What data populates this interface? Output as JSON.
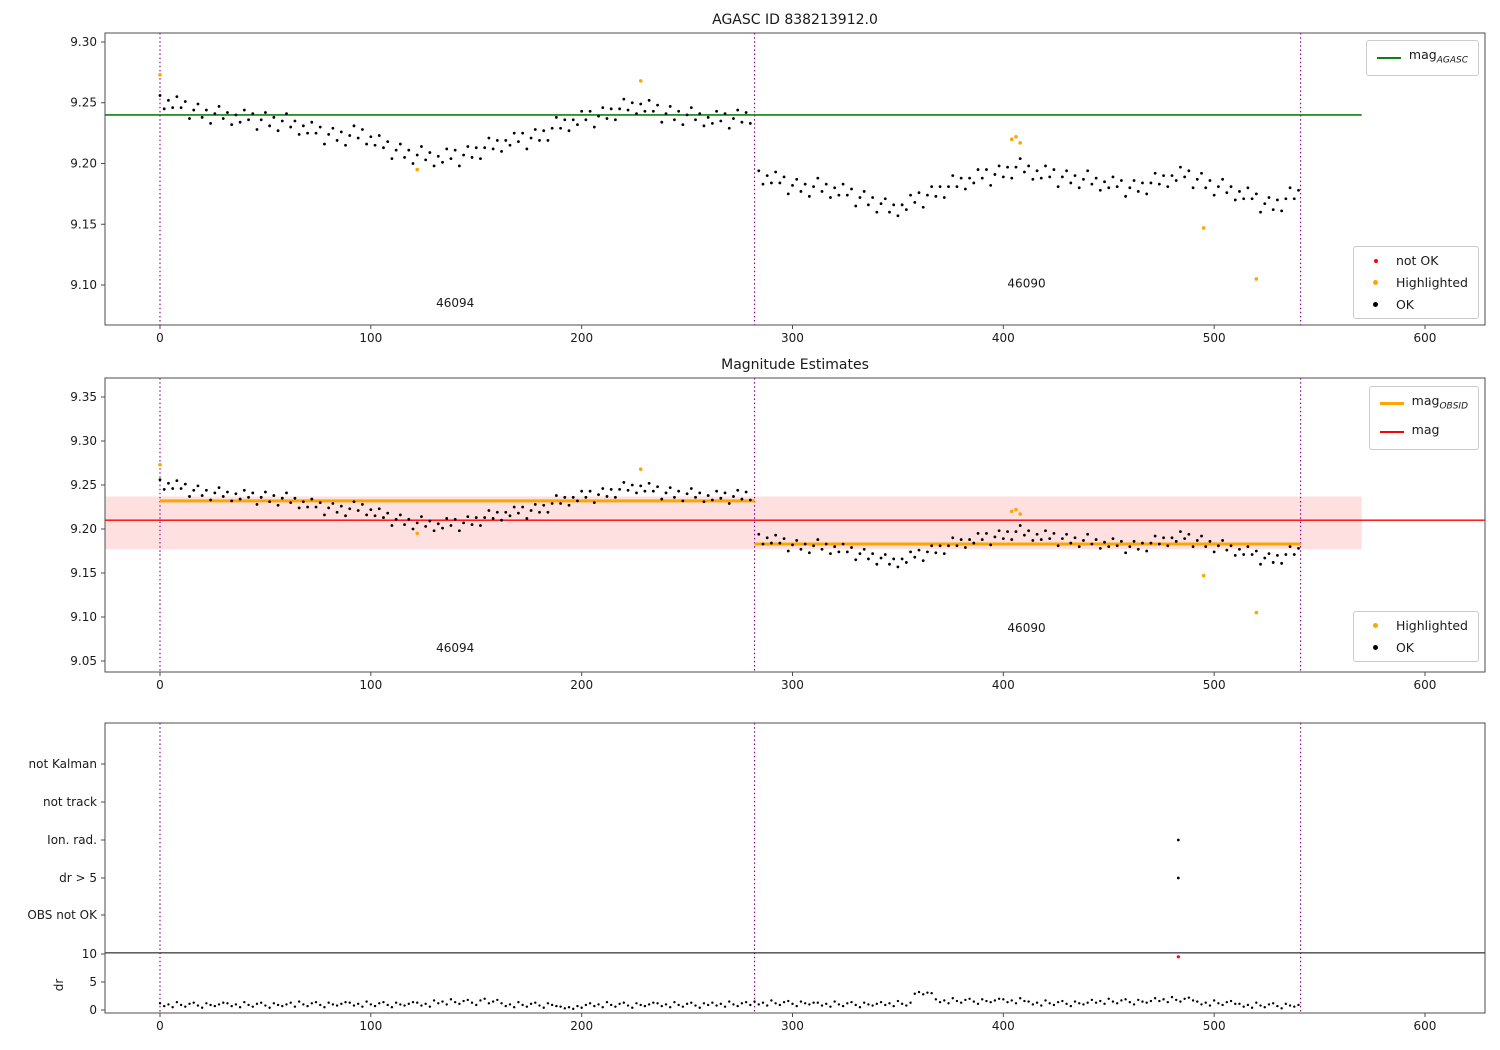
{
  "colors": {
    "ok": "#000000",
    "highlighted": "#ffa500",
    "not_ok": "#ff0000",
    "mag_agasc_line": "#0e8010",
    "mag_obsid_line": "#ffa500",
    "mag_line": "#ff0000",
    "mag_band": "rgba(255,0,0,0.12)",
    "obsid_boundary": "#800080",
    "threshold_line": "#000000"
  },
  "chart_data": {
    "type": "scatter",
    "xticks": [
      0,
      100,
      200,
      300,
      400,
      500,
      600
    ],
    "obsid_boundaries": [
      0,
      282,
      541
    ],
    "charts": [
      {
        "title": "AGASC ID 838213912.0",
        "yticks": [
          9.3,
          9.25,
          9.2,
          9.15,
          9.1
        ],
        "ylim": [
          9.067,
          9.307
        ],
        "xlim": [
          -26,
          629
        ],
        "ref_line": {
          "value": 9.24,
          "x_span": [
            -26,
            570
          ]
        },
        "legend_line": {
          "label_main": "mag",
          "label_sub": "AGASC"
        },
        "legend_points": [
          {
            "label": "not OK"
          },
          {
            "label": "Highlighted"
          },
          {
            "label": "OK"
          }
        ],
        "obsid_labels": [
          {
            "text": "46094",
            "x": 140,
            "y": 9.082
          },
          {
            "text": "46090",
            "x": 411,
            "y": 9.098
          }
        ]
      },
      {
        "title": "Magnitude Estimates",
        "yticks": [
          9.35,
          9.3,
          9.25,
          9.2,
          9.15,
          9.1,
          9.05
        ],
        "ylim": [
          9.037,
          9.372
        ],
        "xlim": [
          -26,
          629
        ],
        "mag_line": {
          "value": 9.21,
          "band": [
            9.177,
            9.237
          ],
          "band_x_span": [
            -26,
            570
          ]
        },
        "obsid_mag_lines": [
          {
            "x_span": [
              0,
              282
            ],
            "value": 9.232
          },
          {
            "x_span": [
              282,
              541
            ],
            "value": 9.183
          }
        ],
        "legend_lines": [
          {
            "label_main": "mag",
            "label_sub": "OBSID"
          },
          {
            "label_main": "mag",
            "label_sub": ""
          }
        ],
        "legend_points": [
          {
            "label": "Highlighted"
          },
          {
            "label": "OK"
          }
        ],
        "obsid_labels": [
          {
            "text": "46094",
            "x": 140,
            "y": 9.06
          },
          {
            "text": "46090",
            "x": 411,
            "y": 9.083
          }
        ]
      },
      {
        "flag_categories": [
          "not Kalman",
          "not track",
          "Ion. rad.",
          "dr > 5",
          "OBS not OK"
        ],
        "dr_ticks": [
          10,
          5,
          0
        ],
        "ylabel": "dr",
        "threshold_dr": 10.2,
        "flag_points": [
          {
            "category": "Ion. rad.",
            "x": 483
          },
          {
            "category": "dr > 5",
            "x": 483
          }
        ],
        "not_ok_points": [
          [
            483,
            9.5
          ]
        ]
      }
    ],
    "series": {
      "obsid1_ok": {
        "x0": 0,
        "dx": 2,
        "values": [
          9.256,
          9.245,
          9.252,
          9.246,
          9.255,
          9.246,
          9.251,
          9.237,
          9.244,
          9.249,
          9.238,
          9.244,
          9.233,
          9.241,
          9.247,
          9.237,
          9.242,
          9.232,
          9.24,
          9.234,
          9.244,
          9.236,
          9.241,
          9.228,
          9.236,
          9.242,
          9.231,
          9.238,
          9.227,
          9.235,
          9.241,
          9.23,
          9.235,
          9.224,
          9.231,
          9.225,
          9.234,
          9.225,
          9.23,
          9.216,
          9.224,
          9.229,
          9.219,
          9.226,
          9.215,
          9.223,
          9.231,
          9.221,
          9.228,
          9.216,
          9.222,
          9.215,
          9.223,
          9.213,
          9.218,
          9.204,
          9.211,
          9.216,
          9.205,
          9.211,
          9.2,
          9.207,
          9.214,
          9.203,
          9.209,
          9.198,
          9.206,
          9.201,
          9.212,
          9.204,
          9.211,
          9.198,
          9.207,
          9.214,
          9.205,
          9.213,
          9.204,
          9.213,
          9.221,
          9.212,
          9.219,
          9.21,
          9.219,
          9.215,
          9.225,
          9.218,
          9.225,
          9.212,
          9.221,
          9.228,
          9.219,
          9.227,
          9.219,
          9.229,
          9.238,
          9.229,
          9.236,
          9.227,
          9.236,
          9.232,
          9.243,
          9.236,
          9.243,
          9.23,
          9.239,
          9.246,
          9.237,
          9.245,
          9.236,
          9.245,
          9.253,
          9.244,
          9.25,
          9.241,
          9.249,
          9.243,
          9.252,
          9.243,
          9.248,
          9.234,
          9.241,
          9.247,
          9.236,
          9.243,
          9.232,
          9.24,
          9.246,
          9.236,
          9.241,
          9.231,
          9.238,
          9.233,
          9.243,
          9.235,
          9.241,
          9.229,
          9.237,
          9.244,
          9.234,
          9.242,
          9.233
        ]
      },
      "obsid2_ok": {
        "x0": 284,
        "dx": 2,
        "values": [
          9.194,
          9.183,
          9.19,
          9.184,
          9.193,
          9.184,
          9.189,
          9.175,
          9.182,
          9.187,
          9.177,
          9.183,
          9.173,
          9.181,
          9.188,
          9.177,
          9.183,
          9.172,
          9.18,
          9.174,
          9.183,
          9.174,
          9.179,
          9.165,
          9.172,
          9.177,
          9.166,
          9.172,
          9.16,
          9.167,
          9.171,
          9.16,
          9.166,
          9.157,
          9.166,
          9.162,
          9.174,
          9.168,
          9.176,
          9.164,
          9.174,
          9.181,
          9.173,
          9.181,
          9.172,
          9.181,
          9.19,
          9.181,
          9.188,
          9.179,
          9.188,
          9.184,
          9.195,
          9.188,
          9.195,
          9.182,
          9.191,
          9.198,
          9.189,
          9.197,
          9.188,
          9.197,
          9.204,
          9.193,
          9.198,
          9.187,
          9.194,
          9.188,
          9.198,
          9.189,
          9.195,
          9.181,
          9.189,
          9.194,
          9.184,
          9.19,
          9.18,
          9.187,
          9.194,
          9.183,
          9.188,
          9.178,
          9.185,
          9.18,
          9.189,
          9.181,
          9.186,
          9.173,
          9.18,
          9.186,
          9.177,
          9.184,
          9.175,
          9.184,
          9.192,
          9.183,
          9.19,
          9.181,
          9.19,
          9.186,
          9.197,
          9.189,
          9.194,
          9.18,
          9.187,
          9.192,
          9.18,
          9.186,
          9.174,
          9.181,
          9.187,
          9.176,
          9.181,
          9.17,
          9.177,
          9.171,
          9.18,
          9.171,
          9.175,
          9.16,
          9.167,
          9.172,
          9.162,
          9.17,
          9.161,
          9.171,
          9.18,
          9.171,
          9.178
        ]
      },
      "highlighted_obsid1": [
        [
          0,
          9.273
        ],
        [
          122,
          9.195
        ],
        [
          228,
          9.268
        ]
      ],
      "highlighted_obsid2": [
        [
          404,
          9.22
        ],
        [
          406,
          9.222
        ],
        [
          408,
          9.217
        ],
        [
          495,
          9.147
        ],
        [
          520,
          9.105
        ]
      ],
      "dr": {
        "x0": 0,
        "dx": 2,
        "values": [
          1.2,
          0.7,
          1.0,
          0.5,
          1.4,
          0.9,
          0.6,
          1.1,
          1.3,
          0.8,
          0.4,
          1.2,
          0.9,
          0.7,
          1.0,
          1.3,
          1.2,
          0.7,
          1.0,
          0.5,
          1.4,
          0.9,
          0.6,
          1.1,
          1.3,
          0.8,
          0.4,
          1.2,
          0.9,
          0.7,
          1.0,
          1.3,
          0.6,
          1.5,
          1.0,
          0.7,
          1.2,
          1.4,
          0.9,
          0.5,
          1.3,
          1.0,
          0.8,
          1.1,
          1.4,
          1.3,
          0.8,
          1.1,
          0.6,
          1.5,
          1.0,
          0.7,
          1.2,
          1.4,
          0.9,
          0.5,
          1.3,
          1.0,
          0.8,
          1.1,
          1.4,
          1.3,
          0.8,
          1.1,
          0.6,
          1.7,
          1.2,
          1.5,
          1.0,
          1.9,
          1.4,
          1.1,
          1.6,
          1.8,
          1.3,
          0.9,
          1.7,
          2.0,
          1.2,
          1.5,
          1.8,
          1.2,
          0.7,
          1.0,
          0.5,
          1.4,
          0.9,
          0.6,
          1.1,
          1.3,
          0.8,
          0.4,
          1.2,
          0.9,
          0.7,
          0.6,
          0.3,
          0.5,
          0.2,
          0.7,
          0.4,
          0.9,
          1.2,
          0.7,
          1.0,
          0.5,
          1.4,
          0.9,
          0.6,
          1.1,
          1.3,
          0.8,
          0.4,
          1.2,
          0.9,
          0.7,
          1.0,
          1.3,
          1.2,
          0.7,
          1.0,
          0.5,
          1.4,
          0.9,
          0.6,
          1.1,
          1.3,
          0.8,
          0.4,
          1.2,
          0.9,
          1.3,
          0.8,
          1.1,
          0.6,
          1.5,
          1.0,
          0.7,
          1.2,
          1.4,
          0.9,
          1.5,
          1.0,
          1.3,
          0.8,
          1.7,
          1.2,
          0.9,
          1.4,
          1.6,
          1.1,
          0.7,
          1.5,
          1.2,
          1.0,
          1.3,
          1.3,
          0.8,
          1.1,
          0.6,
          1.5,
          1.0,
          0.7,
          1.2,
          1.4,
          0.9,
          0.5,
          1.3,
          1.0,
          0.8,
          1.1,
          1.4,
          0.9,
          1.2,
          0.7,
          1.6,
          1.1,
          0.8,
          1.3,
          2.9,
          3.2,
          2.8,
          3.1,
          3.0,
          1.9,
          1.4,
          1.7,
          1.2,
          2.1,
          1.6,
          1.3,
          1.8,
          2.0,
          1.5,
          1.1,
          1.9,
          1.6,
          1.4,
          1.7,
          2.0,
          1.9,
          1.4,
          1.7,
          1.2,
          2.1,
          1.6,
          1.5,
          1.0,
          1.3,
          0.8,
          1.7,
          1.2,
          0.9,
          1.4,
          1.6,
          1.1,
          0.7,
          1.5,
          1.2,
          1.0,
          1.3,
          1.8,
          1.3,
          1.6,
          1.1,
          2.0,
          1.5,
          1.2,
          1.7,
          1.9,
          1.4,
          1.0,
          1.8,
          1.5,
          1.3,
          1.6,
          2.1,
          1.6,
          1.9,
          1.4,
          2.3,
          1.8,
          1.5,
          2.0,
          2.2,
          1.7,
          1.5,
          1.0,
          1.3,
          0.8,
          1.7,
          1.2,
          0.9,
          1.4,
          1.6,
          1.1,
          1.1,
          0.6,
          0.9,
          0.4,
          1.3,
          0.8,
          0.5,
          1.0,
          1.2,
          0.7,
          0.3,
          1.1,
          0.8,
          0.6,
          0.9
        ]
      }
    }
  }
}
